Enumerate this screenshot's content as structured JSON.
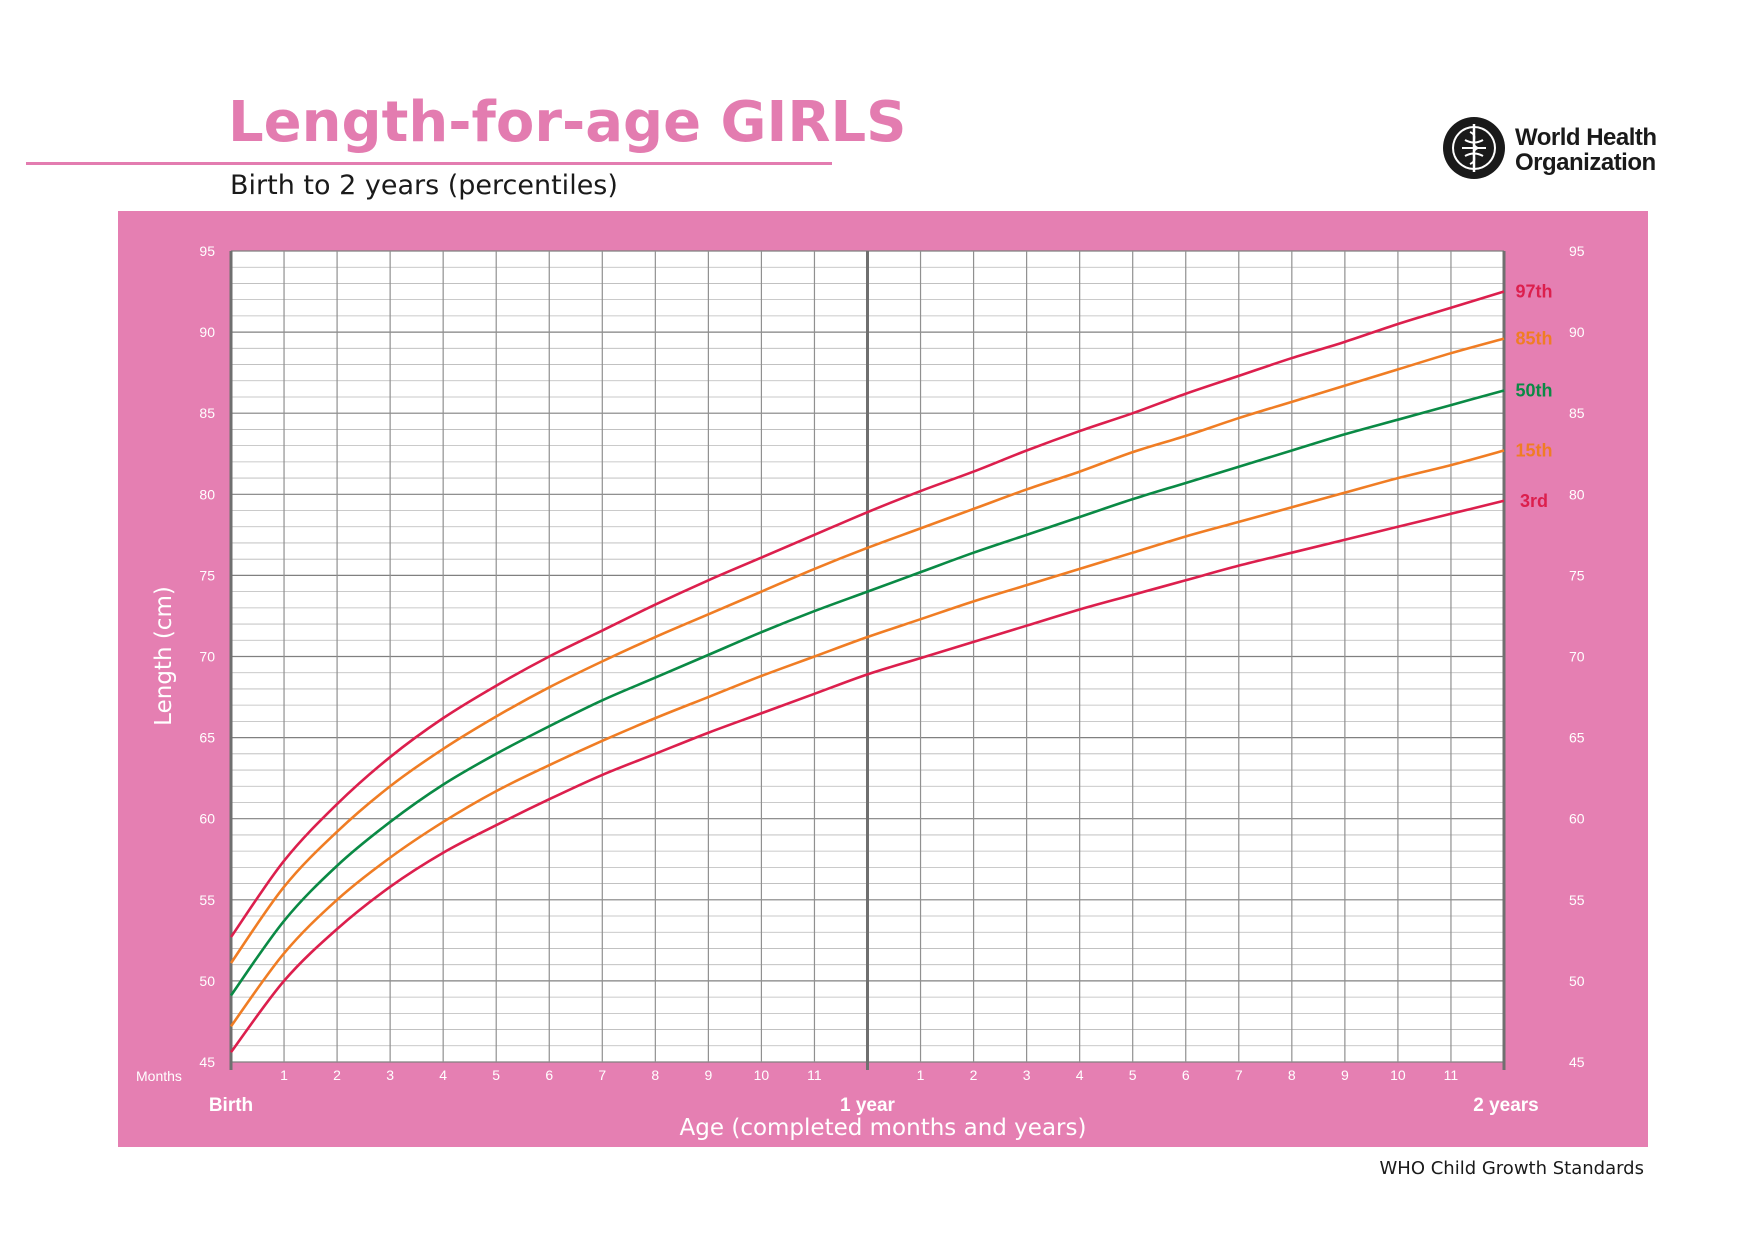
{
  "header": {
    "title": "Length-for-age GIRLS",
    "subtitle": "Birth to 2 years (percentiles)",
    "org_line1": "World Health",
    "org_line2": "Organization",
    "logo_icon": "who-emblem-icon"
  },
  "footer": {
    "text": "WHO Child Growth Standards"
  },
  "colors": {
    "brand_pink": "#e37cb0",
    "panel_pink": "#e57fb2",
    "p3": "#dc1f4d",
    "p15": "#f07d24",
    "p50": "#0a8a45",
    "p85": "#f07d24",
    "p97": "#dc1f4d"
  },
  "chart_data": {
    "type": "line",
    "title": "Length-for-age GIRLS",
    "subtitle": "Birth to 2 years (percentiles)",
    "xlabel": "Age (completed months and years)",
    "ylabel": "Length (cm)",
    "ylim": [
      45,
      95
    ],
    "y_ticks": [
      45,
      50,
      55,
      60,
      65,
      70,
      75,
      80,
      85,
      90,
      95
    ],
    "xlim": [
      0,
      24
    ],
    "months_label": "Months",
    "x_tick_labels": [
      "1",
      "2",
      "3",
      "4",
      "5",
      "6",
      "7",
      "8",
      "9",
      "10",
      "11",
      "",
      "1",
      "2",
      "3",
      "4",
      "5",
      "6",
      "7",
      "8",
      "9",
      "10",
      "11"
    ],
    "x_major_labels": [
      "Birth",
      "1 year",
      "2 years"
    ],
    "grid": true,
    "legend": "curve-end labels (right)",
    "x": [
      0,
      1,
      2,
      3,
      4,
      5,
      6,
      7,
      8,
      9,
      10,
      11,
      12,
      13,
      14,
      15,
      16,
      17,
      18,
      19,
      20,
      21,
      22,
      23,
      24
    ],
    "series": [
      {
        "name": "97th",
        "color_key": "p97",
        "values": [
          52.7,
          57.4,
          60.9,
          63.8,
          66.2,
          68.2,
          70.0,
          71.6,
          73.2,
          74.7,
          76.1,
          77.5,
          78.9,
          80.2,
          81.4,
          82.7,
          83.9,
          85.0,
          86.2,
          87.3,
          88.4,
          89.4,
          90.5,
          91.5,
          92.5
        ]
      },
      {
        "name": "85th",
        "color_key": "p85",
        "values": [
          51.1,
          55.8,
          59.2,
          62.0,
          64.3,
          66.3,
          68.1,
          69.7,
          71.2,
          72.6,
          74.0,
          75.4,
          76.7,
          77.9,
          79.1,
          80.3,
          81.4,
          82.6,
          83.6,
          84.7,
          85.7,
          86.7,
          87.7,
          88.7,
          89.6
        ]
      },
      {
        "name": "50th",
        "color_key": "p50",
        "values": [
          49.1,
          53.7,
          57.1,
          59.8,
          62.1,
          64.0,
          65.7,
          67.3,
          68.7,
          70.1,
          71.5,
          72.8,
          74.0,
          75.2,
          76.4,
          77.5,
          78.6,
          79.7,
          80.7,
          81.7,
          82.7,
          83.7,
          84.6,
          85.5,
          86.4
        ]
      },
      {
        "name": "15th",
        "color_key": "p15",
        "values": [
          47.2,
          51.7,
          55.0,
          57.6,
          59.8,
          61.7,
          63.3,
          64.8,
          66.2,
          67.5,
          68.8,
          70.0,
          71.2,
          72.3,
          73.4,
          74.4,
          75.4,
          76.4,
          77.4,
          78.3,
          79.2,
          80.1,
          81.0,
          81.8,
          82.7
        ]
      },
      {
        "name": "3rd",
        "color_key": "p3",
        "values": [
          45.6,
          50.0,
          53.2,
          55.8,
          57.9,
          59.6,
          61.2,
          62.7,
          64.0,
          65.3,
          66.5,
          67.7,
          68.9,
          69.9,
          70.9,
          71.9,
          72.9,
          73.8,
          74.7,
          75.6,
          76.4,
          77.2,
          78.0,
          78.8,
          79.6
        ]
      }
    ]
  }
}
